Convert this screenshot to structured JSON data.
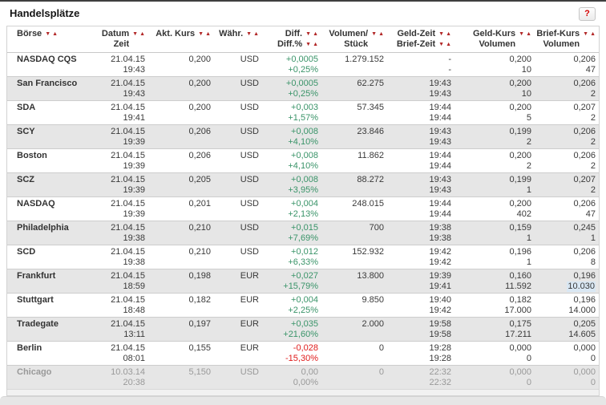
{
  "page": {
    "title": "Handelsplätze",
    "help_label": "?"
  },
  "colors": {
    "positive": "#3a9469",
    "negative": "#e01b1b",
    "muted": "#999999",
    "sort_arrow": "#b22727",
    "row_alt_bg": "#e6e6e6",
    "highlight": "#d9e7f3"
  },
  "icons": {
    "sort_desc": "▼",
    "sort_asc": "▲"
  },
  "table": {
    "headers": [
      {
        "id": "boerse",
        "line1": "Börse",
        "line2": "",
        "sort1": true,
        "sort2": false,
        "align": "left"
      },
      {
        "id": "datum",
        "line1": "Datum",
        "line2": "Zeit",
        "sort1": true,
        "sort2": false,
        "align": "right"
      },
      {
        "id": "akt-kurs",
        "line1": "Akt. Kurs",
        "line2": "",
        "sort1": true,
        "sort2": false,
        "align": "right"
      },
      {
        "id": "waehr",
        "line1": "Währ.",
        "line2": "",
        "sort1": true,
        "sort2": false,
        "align": "right"
      },
      {
        "id": "diff",
        "line1": "Diff.",
        "line2": "Diff.%",
        "sort1": true,
        "sort2": true,
        "align": "right"
      },
      {
        "id": "volumen",
        "line1": "Volumen/",
        "line2": "Stück",
        "sort1": true,
        "sort2": false,
        "align": "right"
      },
      {
        "id": "geld-zeit",
        "line1": "Geld-Zeit",
        "line2": "Brief-Zeit",
        "sort1": true,
        "sort2": true,
        "align": "right"
      },
      {
        "id": "geld-kurs",
        "line1": "Geld-Kurs",
        "line2": "Volumen",
        "sort1": true,
        "sort2": false,
        "align": "right"
      },
      {
        "id": "brief-kurs",
        "line1": "Brief-Kurs",
        "line2": "Volumen",
        "sort1": true,
        "sort2": false,
        "align": "right"
      }
    ],
    "rows": [
      {
        "boerse": "NASDAQ CQS",
        "datum": "21.04.15",
        "zeit": "19:43",
        "akt_kurs": "0,200",
        "waehr": "USD",
        "diff": "+0,0005",
        "diff_pct": "+0,25%",
        "trend": "positive",
        "volumen": "1.279.152",
        "geld_zeit": "-",
        "brief_zeit": "-",
        "geld_kurs": "0,200",
        "geld_volumen": "10",
        "brief_kurs": "0,206",
        "brief_volumen": "47",
        "muted": false,
        "brief_vol_highlight": false
      },
      {
        "boerse": "San Francisco",
        "datum": "21.04.15",
        "zeit": "19:43",
        "akt_kurs": "0,200",
        "waehr": "USD",
        "diff": "+0,0005",
        "diff_pct": "+0,25%",
        "trend": "positive",
        "volumen": "62.275",
        "geld_zeit": "19:43",
        "brief_zeit": "19:43",
        "geld_kurs": "0,200",
        "geld_volumen": "10",
        "brief_kurs": "0,206",
        "brief_volumen": "2",
        "muted": false,
        "brief_vol_highlight": false
      },
      {
        "boerse": "SDA",
        "datum": "21.04.15",
        "zeit": "19:41",
        "akt_kurs": "0,200",
        "waehr": "USD",
        "diff": "+0,003",
        "diff_pct": "+1,57%",
        "trend": "positive",
        "volumen": "57.345",
        "geld_zeit": "19:44",
        "brief_zeit": "19:44",
        "geld_kurs": "0,200",
        "geld_volumen": "5",
        "brief_kurs": "0,207",
        "brief_volumen": "2",
        "muted": false,
        "brief_vol_highlight": false
      },
      {
        "boerse": "SCY",
        "datum": "21.04.15",
        "zeit": "19:39",
        "akt_kurs": "0,206",
        "waehr": "USD",
        "diff": "+0,008",
        "diff_pct": "+4,10%",
        "trend": "positive",
        "volumen": "23.846",
        "geld_zeit": "19:43",
        "brief_zeit": "19:43",
        "geld_kurs": "0,199",
        "geld_volumen": "2",
        "brief_kurs": "0,206",
        "brief_volumen": "2",
        "muted": false,
        "brief_vol_highlight": false
      },
      {
        "boerse": "Boston",
        "datum": "21.04.15",
        "zeit": "19:39",
        "akt_kurs": "0,206",
        "waehr": "USD",
        "diff": "+0,008",
        "diff_pct": "+4,10%",
        "trend": "positive",
        "volumen": "11.862",
        "geld_zeit": "19:44",
        "brief_zeit": "19:44",
        "geld_kurs": "0,200",
        "geld_volumen": "2",
        "brief_kurs": "0,206",
        "brief_volumen": "2",
        "muted": false,
        "brief_vol_highlight": false
      },
      {
        "boerse": "SCZ",
        "datum": "21.04.15",
        "zeit": "19:39",
        "akt_kurs": "0,205",
        "waehr": "USD",
        "diff": "+0,008",
        "diff_pct": "+3,95%",
        "trend": "positive",
        "volumen": "88.272",
        "geld_zeit": "19:43",
        "brief_zeit": "19:43",
        "geld_kurs": "0,199",
        "geld_volumen": "1",
        "brief_kurs": "0,207",
        "brief_volumen": "2",
        "muted": false,
        "brief_vol_highlight": false
      },
      {
        "boerse": "NASDAQ",
        "datum": "21.04.15",
        "zeit": "19:39",
        "akt_kurs": "0,201",
        "waehr": "USD",
        "diff": "+0,004",
        "diff_pct": "+2,13%",
        "trend": "positive",
        "volumen": "248.015",
        "geld_zeit": "19:44",
        "brief_zeit": "19:44",
        "geld_kurs": "0,200",
        "geld_volumen": "402",
        "brief_kurs": "0,206",
        "brief_volumen": "47",
        "muted": false,
        "brief_vol_highlight": false
      },
      {
        "boerse": "Philadelphia",
        "datum": "21.04.15",
        "zeit": "19:38",
        "akt_kurs": "0,210",
        "waehr": "USD",
        "diff": "+0,015",
        "diff_pct": "+7,69%",
        "trend": "positive",
        "volumen": "700",
        "geld_zeit": "19:38",
        "brief_zeit": "19:38",
        "geld_kurs": "0,159",
        "geld_volumen": "1",
        "brief_kurs": "0,245",
        "brief_volumen": "1",
        "muted": false,
        "brief_vol_highlight": false
      },
      {
        "boerse": "SCD",
        "datum": "21.04.15",
        "zeit": "19:38",
        "akt_kurs": "0,210",
        "waehr": "USD",
        "diff": "+0,012",
        "diff_pct": "+6,33%",
        "trend": "positive",
        "volumen": "152.932",
        "geld_zeit": "19:42",
        "brief_zeit": "19:42",
        "geld_kurs": "0,196",
        "geld_volumen": "1",
        "brief_kurs": "0,206",
        "brief_volumen": "8",
        "muted": false,
        "brief_vol_highlight": false
      },
      {
        "boerse": "Frankfurt",
        "datum": "21.04.15",
        "zeit": "18:59",
        "akt_kurs": "0,198",
        "waehr": "EUR",
        "diff": "+0,027",
        "diff_pct": "+15,79%",
        "trend": "positive",
        "volumen": "13.800",
        "geld_zeit": "19:39",
        "brief_zeit": "19:41",
        "geld_kurs": "0,160",
        "geld_volumen": "11.592",
        "brief_kurs": "0,196",
        "brief_volumen": "10.030",
        "muted": false,
        "brief_vol_highlight": true
      },
      {
        "boerse": "Stuttgart",
        "datum": "21.04.15",
        "zeit": "18:48",
        "akt_kurs": "0,182",
        "waehr": "EUR",
        "diff": "+0,004",
        "diff_pct": "+2,25%",
        "trend": "positive",
        "volumen": "9.850",
        "geld_zeit": "19:40",
        "brief_zeit": "19:42",
        "geld_kurs": "0,182",
        "geld_volumen": "17.000",
        "brief_kurs": "0,196",
        "brief_volumen": "14.000",
        "muted": false,
        "brief_vol_highlight": false
      },
      {
        "boerse": "Tradegate",
        "datum": "21.04.15",
        "zeit": "13:11",
        "akt_kurs": "0,197",
        "waehr": "EUR",
        "diff": "+0,035",
        "diff_pct": "+21,60%",
        "trend": "positive",
        "volumen": "2.000",
        "geld_zeit": "19:58",
        "brief_zeit": "19:58",
        "geld_kurs": "0,175",
        "geld_volumen": "17.211",
        "brief_kurs": "0,205",
        "brief_volumen": "14.605",
        "muted": false,
        "brief_vol_highlight": false
      },
      {
        "boerse": "Berlin",
        "datum": "21.04.15",
        "zeit": "08:01",
        "akt_kurs": "0,155",
        "waehr": "EUR",
        "diff": "-0,028",
        "diff_pct": "-15,30%",
        "trend": "negative",
        "volumen": "0",
        "geld_zeit": "19:28",
        "brief_zeit": "19:28",
        "geld_kurs": "0,000",
        "geld_volumen": "0",
        "brief_kurs": "0,000",
        "brief_volumen": "0",
        "muted": false,
        "brief_vol_highlight": false
      },
      {
        "boerse": "Chicago",
        "datum": "10.03.14",
        "zeit": "20:38",
        "akt_kurs": "5,150",
        "waehr": "USD",
        "diff": "0,00",
        "diff_pct": "0,00%",
        "trend": "neutral",
        "volumen": "0",
        "geld_zeit": "22:32",
        "brief_zeit": "22:32",
        "geld_kurs": "0,000",
        "geld_volumen": "0",
        "brief_kurs": "0,000",
        "brief_volumen": "0",
        "muted": true,
        "brief_vol_highlight": false
      }
    ]
  }
}
